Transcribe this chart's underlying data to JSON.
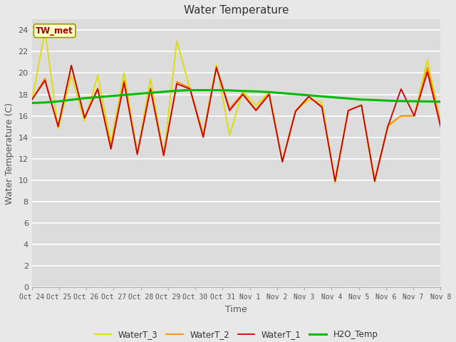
{
  "title": "Water Temperature",
  "xlabel": "Time",
  "ylabel": "Water Temperature (C)",
  "annotation": "TW_met",
  "ylim": [
    0,
    25
  ],
  "yticks": [
    0,
    2,
    4,
    6,
    8,
    10,
    12,
    14,
    16,
    18,
    20,
    22,
    24
  ],
  "x_labels": [
    "Oct 24",
    "Oct 25",
    "Oct 26",
    "Oct 27",
    "Oct 28",
    "Oct 29",
    "Oct 30",
    "Oct 31",
    "Nov 1",
    "Nov 2",
    "Nov 3",
    "Nov 4",
    "Nov 5",
    "Nov 6",
    "Nov 7",
    "Nov 8"
  ],
  "colors": {
    "WaterT_1": "#cc0000",
    "WaterT_2": "#ff8800",
    "WaterT_3": "#dddd00",
    "H2O_Temp": "#00bb00"
  },
  "bg_color": "#dcdcdc",
  "fig_bg": "#e8e8e8",
  "WaterT_1": [
    17.5,
    19.3,
    15.0,
    20.7,
    15.8,
    18.5,
    12.9,
    19.1,
    12.4,
    18.5,
    12.3,
    19.0,
    18.5,
    14.0,
    20.5,
    16.5,
    18.0,
    16.5,
    18.0,
    11.7,
    16.4,
    17.8,
    16.8,
    9.9,
    16.5,
    17.0,
    9.9,
    15.0,
    18.5,
    16.0,
    20.1,
    15.0
  ],
  "WaterT_2": [
    17.5,
    19.5,
    15.0,
    20.7,
    15.9,
    18.6,
    13.1,
    19.3,
    12.5,
    18.6,
    12.4,
    19.2,
    18.6,
    14.2,
    20.6,
    16.7,
    18.1,
    16.6,
    18.1,
    11.8,
    16.5,
    17.8,
    16.9,
    9.9,
    16.5,
    17.0,
    10.0,
    15.1,
    16.0,
    16.0,
    20.5,
    15.3
  ],
  "WaterT_3": [
    17.3,
    24.0,
    14.8,
    19.8,
    15.5,
    19.8,
    13.5,
    20.0,
    12.5,
    19.5,
    12.3,
    23.0,
    18.5,
    14.3,
    20.8,
    14.2,
    18.3,
    17.0,
    18.2,
    11.8,
    16.5,
    17.5,
    17.3,
    9.7,
    16.5,
    17.0,
    9.8,
    15.0,
    16.0,
    16.0,
    21.2,
    15.3
  ],
  "H2O_Temp": [
    17.2,
    17.25,
    17.35,
    17.5,
    17.65,
    17.75,
    17.85,
    17.95,
    18.05,
    18.15,
    18.25,
    18.35,
    18.4,
    18.4,
    18.4,
    18.38,
    18.32,
    18.28,
    18.22,
    18.12,
    18.02,
    17.92,
    17.82,
    17.72,
    17.62,
    17.52,
    17.48,
    17.42,
    17.38,
    17.36,
    17.35,
    17.32
  ]
}
